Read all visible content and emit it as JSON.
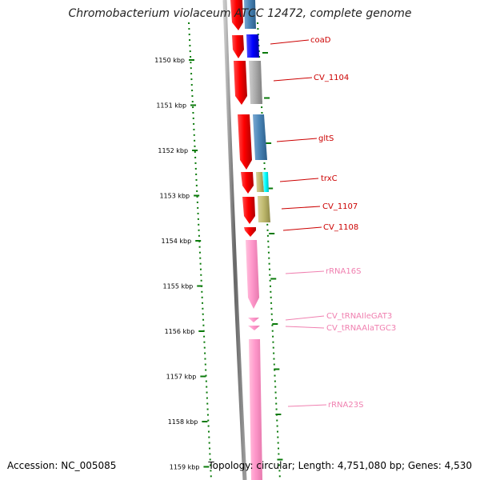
{
  "title": "Chromobacterium violaceum ATCC 12472, complete genome",
  "footer": {
    "accession": "Accession: NC_005085",
    "stats": "Topology: circular; Length: 4,751,080 bp; Genes: 4,530"
  },
  "ruler": {
    "unit": "kbp",
    "ticks": [
      {
        "label": "1150 kbp"
      },
      {
        "label": "1151 kbp"
      },
      {
        "label": "1152 kbp"
      },
      {
        "label": "1153 kbp"
      },
      {
        "label": "1154 kbp"
      },
      {
        "label": "1155 kbp"
      },
      {
        "label": "1156 kbp"
      },
      {
        "label": "1157 kbp"
      },
      {
        "label": "1158 kbp"
      },
      {
        "label": "1159 kbp"
      }
    ]
  },
  "features": [
    {
      "label": "coaD",
      "type": "CDS",
      "color": "#cc0000"
    },
    {
      "label": "CV_1104",
      "type": "CDS",
      "color": "#cc0000"
    },
    {
      "label": "gltS",
      "type": "CDS",
      "color": "#cc0000"
    },
    {
      "label": "trxC",
      "type": "CDS",
      "color": "#cc0000"
    },
    {
      "label": "CV_1107",
      "type": "CDS",
      "color": "#cc0000"
    },
    {
      "label": "CV_1108",
      "type": "CDS",
      "color": "#cc0000"
    },
    {
      "label": "rRNA16S",
      "type": "rRNA",
      "color": "#f080b0"
    },
    {
      "label": "CV_tRNAIleGAT3",
      "type": "tRNA",
      "color": "#f080b0"
    },
    {
      "label": "CV_tRNAAlaTGC3",
      "type": "tRNA",
      "color": "#f080b0"
    },
    {
      "label": "rRNA23S",
      "type": "rRNA",
      "color": "#f080b0"
    }
  ],
  "colors": {
    "cds": "#ff0000",
    "rna": "#ff99cc",
    "ruler": "#0a7a0a",
    "backbone": "#777777",
    "cog_blue": "#4682b4",
    "cog_navy": "#0000ff",
    "cog_gray": "#a9a9a9",
    "cog_khaki": "#bdb76b",
    "cog_cyan": "#00ffff"
  }
}
